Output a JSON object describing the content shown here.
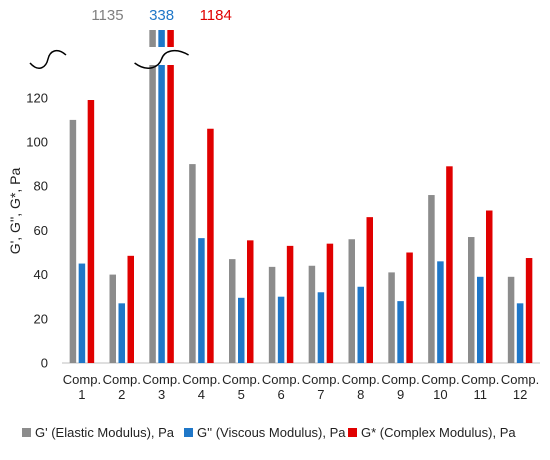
{
  "chart_data": {
    "type": "bar",
    "title": "",
    "xlabel": "",
    "ylabel": "G', G'', G*, Pa",
    "ylim": [
      0,
      130
    ],
    "yticks": [
      0,
      20,
      40,
      60,
      80,
      100,
      120
    ],
    "grid": false,
    "legend_position": "bottom",
    "axis_break": true,
    "categories": [
      [
        "Comp.",
        "1"
      ],
      [
        "Comp.",
        "2"
      ],
      [
        "Comp.",
        "3"
      ],
      [
        "Comp.",
        "4"
      ],
      [
        "Comp.",
        "5"
      ],
      [
        "Comp.",
        "6"
      ],
      [
        "Comp.",
        "7"
      ],
      [
        "Comp.",
        "8"
      ],
      [
        "Comp.",
        "9"
      ],
      [
        "Comp.",
        "10"
      ],
      [
        "Comp.",
        "11"
      ],
      [
        "Comp.",
        "12"
      ]
    ],
    "series": [
      {
        "name": "G' (Elastic Modulus), Pa",
        "color": "#8c8c8c",
        "values": [
          110,
          40,
          1135,
          90,
          47,
          43.5,
          44,
          56,
          41,
          76,
          57,
          39
        ]
      },
      {
        "name": "G'' (Viscous Modulus), Pa",
        "color": "#1f77c8",
        "values": [
          45,
          27,
          338,
          56.5,
          29.5,
          30,
          32,
          34.5,
          28,
          46,
          39,
          27
        ]
      },
      {
        "name": "G* (Complex Modulus), Pa",
        "color": "#e00000",
        "values": [
          119,
          48.5,
          1184,
          106,
          55.5,
          53,
          54,
          66,
          50,
          89,
          69,
          47.5
        ]
      }
    ],
    "annotations": [
      {
        "text": "1135",
        "color": "#7f7f7f"
      },
      {
        "text": "338",
        "color": "#1f77c8"
      },
      {
        "text": "1184",
        "color": "#e00000"
      }
    ]
  }
}
